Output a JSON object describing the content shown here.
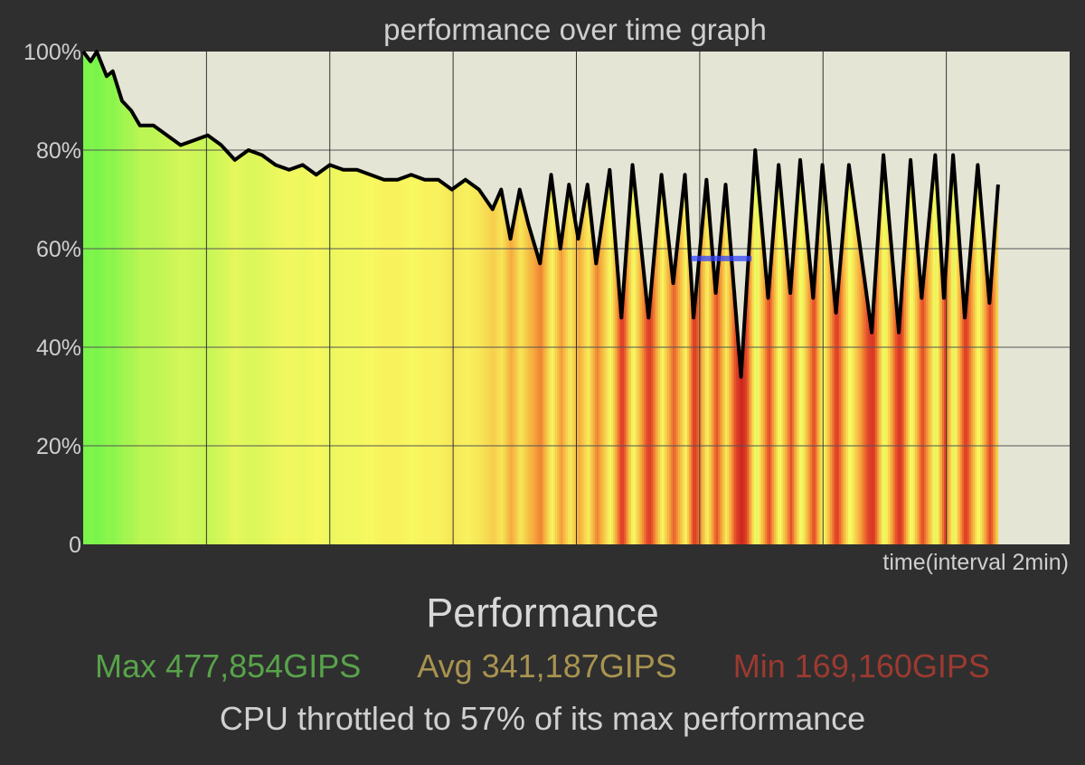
{
  "chart_data": {
    "type": "line",
    "title": "performance over time graph",
    "xlabel": "time(interval 2min)",
    "ylabel": "",
    "xlim": [
      0,
      16
    ],
    "ylim": [
      0,
      100
    ],
    "x_grid_step": 2,
    "yticks": [
      {
        "value": 0,
        "label": "0"
      },
      {
        "value": 20,
        "label": "20%"
      },
      {
        "value": 40,
        "label": "40%"
      },
      {
        "value": 60,
        "label": "60%"
      },
      {
        "value": 80,
        "label": "80%"
      },
      {
        "value": 100,
        "label": "100%"
      }
    ],
    "grid": true,
    "series": [
      {
        "name": "performance",
        "points": [
          [
            0,
            100
          ],
          [
            0.12,
            98
          ],
          [
            0.22,
            100
          ],
          [
            0.38,
            95
          ],
          [
            0.48,
            96
          ],
          [
            0.63,
            90
          ],
          [
            0.78,
            88
          ],
          [
            0.92,
            85
          ],
          [
            1.14,
            85
          ],
          [
            1.36,
            83
          ],
          [
            1.58,
            81
          ],
          [
            1.8,
            82
          ],
          [
            2.02,
            83
          ],
          [
            2.24,
            81
          ],
          [
            2.46,
            78
          ],
          [
            2.68,
            80
          ],
          [
            2.9,
            79
          ],
          [
            3.12,
            77
          ],
          [
            3.34,
            76
          ],
          [
            3.56,
            77
          ],
          [
            3.78,
            75
          ],
          [
            4.0,
            77
          ],
          [
            4.22,
            76
          ],
          [
            4.44,
            76
          ],
          [
            4.66,
            75
          ],
          [
            4.88,
            74
          ],
          [
            5.1,
            74
          ],
          [
            5.32,
            75
          ],
          [
            5.54,
            74
          ],
          [
            5.76,
            74
          ],
          [
            5.98,
            72
          ],
          [
            6.2,
            74
          ],
          [
            6.42,
            72
          ],
          [
            6.64,
            68
          ],
          [
            6.78,
            72
          ],
          [
            6.93,
            62
          ],
          [
            7.08,
            72
          ],
          [
            7.22,
            65
          ],
          [
            7.41,
            57
          ],
          [
            7.59,
            75
          ],
          [
            7.74,
            60
          ],
          [
            7.88,
            73
          ],
          [
            8.03,
            62
          ],
          [
            8.18,
            73
          ],
          [
            8.32,
            57
          ],
          [
            8.54,
            76
          ],
          [
            8.73,
            46
          ],
          [
            8.91,
            77
          ],
          [
            9.17,
            46
          ],
          [
            9.38,
            75
          ],
          [
            9.57,
            53
          ],
          [
            9.76,
            75
          ],
          [
            9.9,
            46
          ],
          [
            10.11,
            74
          ],
          [
            10.26,
            51
          ],
          [
            10.42,
            73
          ],
          [
            10.67,
            34
          ],
          [
            10.9,
            80
          ],
          [
            11.11,
            50
          ],
          [
            11.28,
            77
          ],
          [
            11.47,
            51
          ],
          [
            11.63,
            78
          ],
          [
            11.84,
            50
          ],
          [
            11.99,
            77
          ],
          [
            12.21,
            47
          ],
          [
            12.42,
            77
          ],
          [
            12.79,
            43
          ],
          [
            12.98,
            79
          ],
          [
            13.23,
            43
          ],
          [
            13.42,
            78
          ],
          [
            13.6,
            50
          ],
          [
            13.82,
            79
          ],
          [
            13.96,
            50
          ],
          [
            14.11,
            79
          ],
          [
            14.3,
            46
          ],
          [
            14.51,
            77
          ],
          [
            14.7,
            49
          ],
          [
            14.84,
            73
          ]
        ]
      }
    ],
    "marker": {
      "value": 58,
      "x_range": [
        9.86,
        10.84
      ],
      "color": "#3344ff"
    },
    "colors": {
      "plot_bg": "#e5e5d6",
      "line": "#000000",
      "high": "#7cf54a",
      "mid": "#f8f860",
      "low": "#e2402a"
    }
  },
  "footer": {
    "heading": "Performance",
    "max": "Max 477,854GIPS",
    "avg": "Avg 341,187GIPS",
    "min": "Min 169,160GIPS",
    "summary": "CPU throttled to 57% of its max performance"
  }
}
